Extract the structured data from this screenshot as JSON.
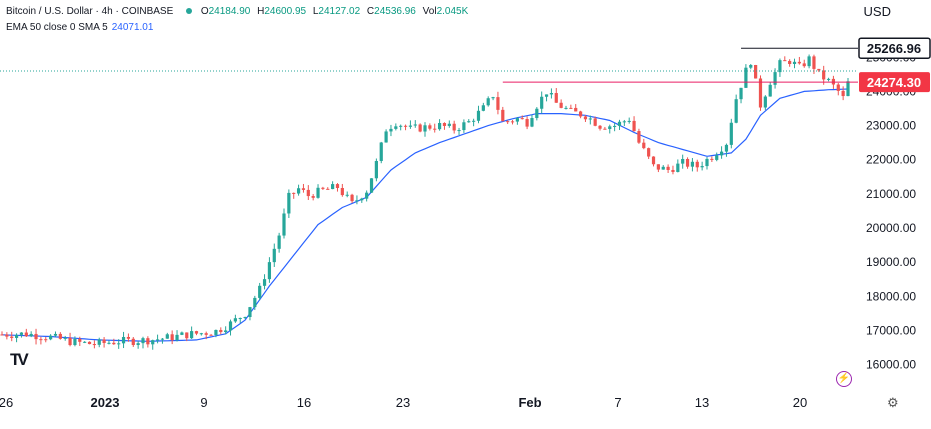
{
  "header": {
    "symbol": "Bitcoin / U.S. Dollar · 4h · COINBASE",
    "o_label": "O",
    "o_value": "24184.90",
    "h_label": "H",
    "h_value": "24600.95",
    "l_label": "L",
    "l_value": "24127.02",
    "c_label": "C",
    "c_value": "24536.96",
    "vol_label": "Vol",
    "vol_value": "2.045K",
    "indicator": "EMA 50 close 0 SMA 5",
    "indicator_value": "24071.01",
    "currency": "USD"
  },
  "colors": {
    "up": "#26a69a",
    "down": "#ef5350",
    "ema": "#2962ff",
    "resistance": "#131722",
    "support": "#e91e63",
    "price_tag": "#f23645"
  },
  "icons": [
    "tradingview-logo-icon",
    "lightning-icon",
    "gear-icon"
  ],
  "chart_data": {
    "type": "candlestick",
    "y_axis": {
      "min": 15400,
      "max": 25800,
      "ticks": [
        "16000.00",
        "17000.00",
        "18000.00",
        "19000.00",
        "20000.00",
        "21000.00",
        "22000.00",
        "23000.00",
        "24000.00",
        "25000.00"
      ]
    },
    "x_axis": {
      "ticks": [
        "26",
        "2023",
        "9",
        "16",
        "23",
        "Feb",
        "7",
        "13",
        "20"
      ]
    },
    "price_labels": [
      {
        "value": 25266.96,
        "text": "25266.96",
        "style": "resistance"
      },
      {
        "value": 24274.3,
        "text": "24274.30",
        "style": "current"
      }
    ],
    "price_path": [
      [
        0,
        16880
      ],
      [
        5,
        16900
      ],
      [
        10,
        16800
      ],
      [
        15,
        16650
      ],
      [
        19,
        16600
      ],
      [
        24,
        16680
      ],
      [
        28,
        16700
      ],
      [
        31,
        16730
      ],
      [
        35,
        16800
      ],
      [
        38,
        16880
      ],
      [
        41,
        16920
      ],
      [
        44,
        16980
      ],
      [
        47,
        17200
      ],
      [
        50,
        17500
      ],
      [
        53,
        18200
      ],
      [
        55,
        19000
      ],
      [
        57,
        19800
      ],
      [
        59,
        20900
      ],
      [
        61,
        21150
      ],
      [
        63,
        20950
      ],
      [
        66,
        21100
      ],
      [
        69,
        21200
      ],
      [
        72,
        20700
      ],
      [
        75,
        21100
      ],
      [
        77,
        21900
      ],
      [
        79,
        22900
      ],
      [
        81,
        23100
      ],
      [
        84,
        22900
      ],
      [
        87,
        22950
      ],
      [
        90,
        23000
      ],
      [
        93,
        22900
      ],
      [
        96,
        23100
      ],
      [
        99,
        23500
      ],
      [
        101,
        23900
      ],
      [
        103,
        23100
      ],
      [
        106,
        23200
      ],
      [
        108,
        23100
      ],
      [
        110,
        23600
      ],
      [
        112,
        24000
      ],
      [
        114,
        23650
      ],
      [
        117,
        23400
      ],
      [
        120,
        23300
      ],
      [
        123,
        23000
      ],
      [
        126,
        23000
      ],
      [
        129,
        23200
      ],
      [
        131,
        22500
      ],
      [
        134,
        21800
      ],
      [
        137,
        21700
      ],
      [
        140,
        21900
      ],
      [
        143,
        21800
      ],
      [
        146,
        22100
      ],
      [
        149,
        22500
      ],
      [
        151,
        23800
      ],
      [
        153,
        24600
      ],
      [
        154,
        24900
      ],
      [
        156,
        23600
      ],
      [
        158,
        24300
      ],
      [
        160,
        24800
      ],
      [
        162,
        24900
      ],
      [
        164,
        24700
      ],
      [
        166,
        24950
      ],
      [
        168,
        24500
      ],
      [
        170,
        24300
      ],
      [
        172,
        24000
      ],
      [
        173,
        23800
      ],
      [
        174,
        24250
      ]
    ],
    "ema_path": [
      [
        0,
        16870
      ],
      [
        10,
        16820
      ],
      [
        20,
        16720
      ],
      [
        30,
        16680
      ],
      [
        40,
        16720
      ],
      [
        46,
        16900
      ],
      [
        50,
        17300
      ],
      [
        55,
        18300
      ],
      [
        60,
        19200
      ],
      [
        65,
        20100
      ],
      [
        70,
        20600
      ],
      [
        75,
        20900
      ],
      [
        80,
        21700
      ],
      [
        85,
        22200
      ],
      [
        90,
        22500
      ],
      [
        95,
        22750
      ],
      [
        100,
        23000
      ],
      [
        105,
        23200
      ],
      [
        110,
        23350
      ],
      [
        115,
        23350
      ],
      [
        120,
        23300
      ],
      [
        125,
        23150
      ],
      [
        130,
        22800
      ],
      [
        135,
        22500
      ],
      [
        140,
        22300
      ],
      [
        145,
        22100
      ],
      [
        150,
        22200
      ],
      [
        153,
        22600
      ],
      [
        156,
        23300
      ],
      [
        160,
        23800
      ],
      [
        165,
        24000
      ],
      [
        170,
        24050
      ],
      [
        174,
        24071
      ]
    ],
    "lines": [
      {
        "type": "resistance",
        "value": 25266.96,
        "x_start": 152,
        "x_end": 174
      },
      {
        "type": "support",
        "value": 24274.3,
        "x_start": 103,
        "x_end": 174
      }
    ]
  }
}
